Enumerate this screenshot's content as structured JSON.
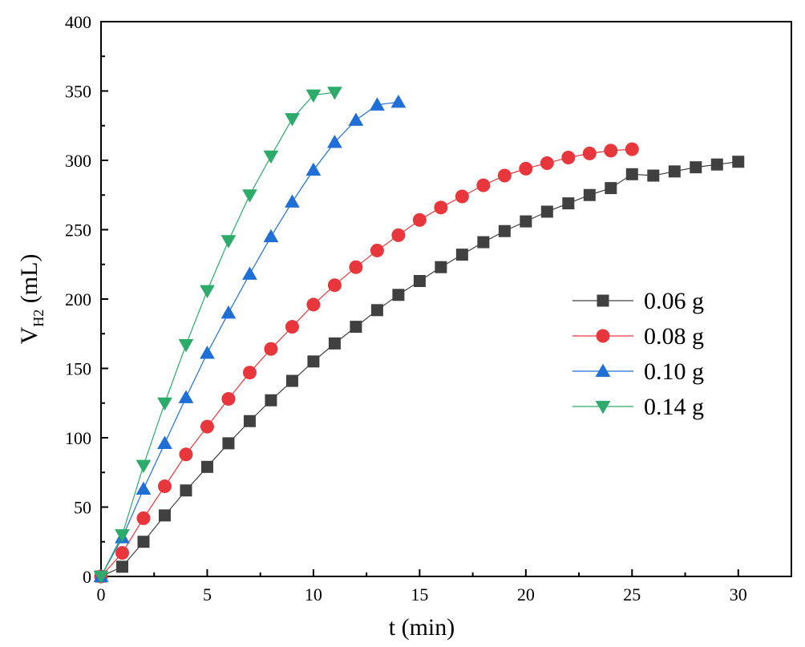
{
  "chart_data": {
    "type": "line",
    "title": "",
    "xlabel": "t (min)",
    "ylabel_main": "V",
    "ylabel_sub": "H2",
    "ylabel_unit": " (mL)",
    "xlim": [
      0,
      32.5
    ],
    "ylim": [
      0,
      400
    ],
    "xticks": [
      0,
      5,
      10,
      15,
      20,
      25,
      30
    ],
    "xtick_labels": [
      "0",
      "5",
      "10",
      "15",
      "20",
      "25",
      "30"
    ],
    "yticks": [
      0,
      50,
      100,
      150,
      200,
      250,
      300,
      350,
      400
    ],
    "ytick_labels": [
      "0",
      "50",
      "100",
      "150",
      "200",
      "250",
      "300",
      "350",
      "400"
    ],
    "grid": false,
    "legend_position": "center-right",
    "series": [
      {
        "name": "0.06 g",
        "marker": "square",
        "color": "#404040",
        "x": [
          0,
          1,
          2,
          3,
          4,
          5,
          6,
          7,
          8,
          9,
          10,
          11,
          12,
          13,
          14,
          15,
          16,
          17,
          18,
          19,
          20,
          21,
          22,
          23,
          24,
          25,
          26,
          27,
          28,
          29,
          30
        ],
        "y": [
          0,
          7,
          25,
          44,
          62,
          79,
          96,
          112,
          127,
          141,
          155,
          168,
          180,
          192,
          203,
          213,
          223,
          232,
          241,
          249,
          256,
          263,
          269,
          275,
          280,
          290,
          289,
          292,
          295,
          297,
          299
        ]
      },
      {
        "name": "0.08 g",
        "marker": "circle",
        "color": "#e8373c",
        "x": [
          0,
          1,
          2,
          3,
          4,
          5,
          6,
          7,
          8,
          9,
          10,
          11,
          12,
          13,
          14,
          15,
          16,
          17,
          18,
          19,
          20,
          21,
          22,
          23,
          24,
          25
        ],
        "y": [
          0,
          17,
          42,
          65,
          88,
          108,
          128,
          147,
          164,
          180,
          196,
          210,
          223,
          235,
          246,
          257,
          266,
          274,
          282,
          289,
          294,
          298,
          302,
          305,
          307,
          308
        ]
      },
      {
        "name": "0.10 g",
        "marker": "triangle-up",
        "color": "#1f6fd6",
        "x": [
          0,
          1,
          2,
          3,
          4,
          5,
          6,
          7,
          8,
          9,
          10,
          11,
          12,
          13,
          14
        ],
        "y": [
          0,
          28,
          63,
          96,
          129,
          161,
          190,
          218,
          245,
          270,
          293,
          313,
          329,
          340,
          342
        ]
      },
      {
        "name": "0.14 g",
        "marker": "triangle-down",
        "color": "#2eaa6a",
        "x": [
          0,
          1,
          2,
          3,
          4,
          5,
          6,
          7,
          8,
          9,
          10,
          11
        ],
        "y": [
          0,
          30,
          80,
          125,
          167,
          206,
          242,
          275,
          303,
          330,
          347,
          349
        ]
      }
    ]
  }
}
